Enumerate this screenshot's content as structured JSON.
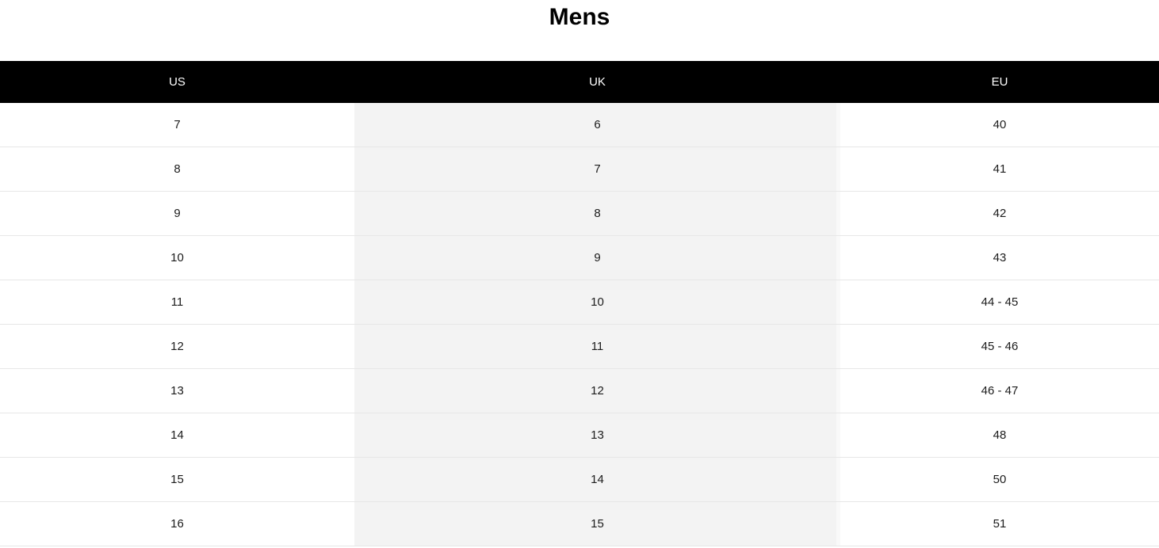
{
  "title": "Mens",
  "table": {
    "columns": [
      "US",
      "UK",
      "EU"
    ],
    "rows": [
      {
        "us": "7",
        "uk": "6",
        "eu": "40"
      },
      {
        "us": "8",
        "uk": "7",
        "eu": "41"
      },
      {
        "us": "9",
        "uk": "8",
        "eu": "42"
      },
      {
        "us": "10",
        "uk": "9",
        "eu": "43"
      },
      {
        "us": "11",
        "uk": "10",
        "eu": "44 - 45"
      },
      {
        "us": "12",
        "uk": "11",
        "eu": "45 - 46"
      },
      {
        "us": "13",
        "uk": "12",
        "eu": "46 - 47"
      },
      {
        "us": "14",
        "uk": "13",
        "eu": "48"
      },
      {
        "us": "15",
        "uk": "14",
        "eu": "50"
      },
      {
        "us": "16",
        "uk": "15",
        "eu": "51"
      }
    ]
  },
  "colors": {
    "header_bg": "#000000",
    "header_text": "#ffffff",
    "uk_column_bg": "#f3f3f3",
    "row_divider": "#e7e7e7",
    "title_text": "#000000"
  }
}
